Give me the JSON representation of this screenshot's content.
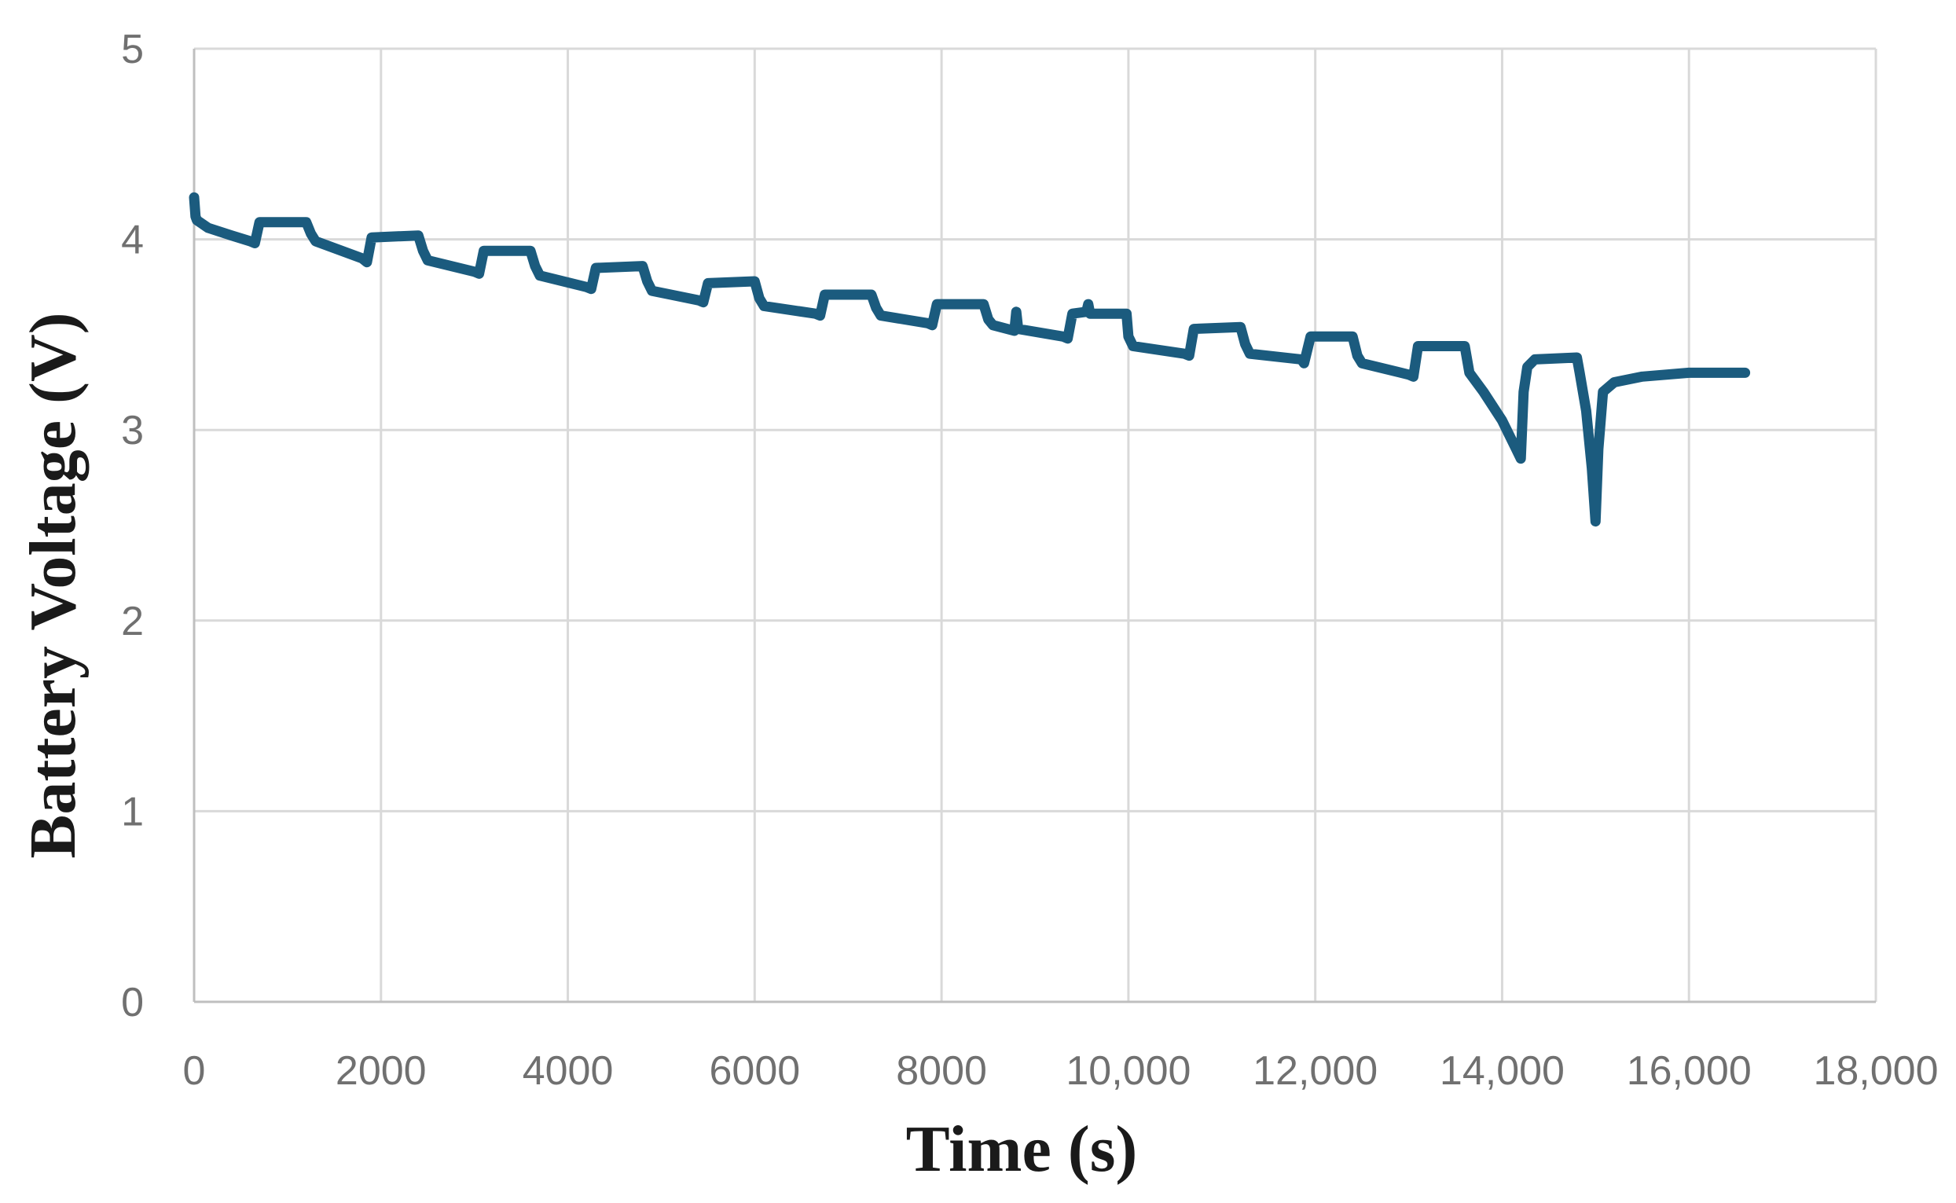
{
  "chart_data": {
    "type": "line",
    "xlabel": "Time (s)",
    "ylabel": "Battery Voltage (V)",
    "xlim": [
      0,
      18000
    ],
    "ylim": [
      0,
      5
    ],
    "x_ticks": [
      0,
      2000,
      4000,
      6000,
      8000,
      10000,
      12000,
      14000,
      16000,
      18000
    ],
    "x_tick_labels": [
      "0",
      "2000",
      "4000",
      "6000",
      "8000",
      "10,000",
      "12,000",
      "14,000",
      "16,000",
      "18,000"
    ],
    "y_ticks": [
      0,
      1,
      2,
      3,
      4,
      5
    ],
    "y_tick_labels": [
      "0",
      "1",
      "2",
      "3",
      "4",
      "5"
    ],
    "grid": true,
    "legend": "none",
    "series": [
      {
        "color": "#1b5b7e",
        "x": [
          0,
          15,
          30,
          150,
          400,
          600,
          650,
          700,
          1200,
          1250,
          1300,
          1800,
          1850,
          1900,
          2400,
          2450,
          2500,
          3000,
          3050,
          3100,
          3600,
          3650,
          3700,
          4200,
          4250,
          4300,
          4800,
          4850,
          4900,
          5400,
          5450,
          5500,
          6000,
          6050,
          6100,
          6650,
          6700,
          6750,
          7250,
          7300,
          7350,
          7850,
          7900,
          7950,
          8450,
          8500,
          8550,
          8780,
          8800,
          8820,
          9300,
          9350,
          9400,
          9550,
          9570,
          9590,
          9980,
          10000,
          10050,
          10600,
          10650,
          10700,
          11200,
          11250,
          11300,
          11850,
          11880,
          11950,
          12400,
          12450,
          12500,
          13000,
          13050,
          13100,
          13600,
          13650,
          13800,
          14000,
          14150,
          14200,
          14230,
          14270,
          14350,
          14800,
          14830,
          14900,
          14960,
          15000,
          15030,
          15080,
          15200,
          15500,
          16000,
          16600
        ],
        "y": [
          4.22,
          4.12,
          4.1,
          4.06,
          4.02,
          3.99,
          3.98,
          4.09,
          4.09,
          4.03,
          3.99,
          3.9,
          3.88,
          4.01,
          4.02,
          3.94,
          3.89,
          3.83,
          3.82,
          3.94,
          3.94,
          3.86,
          3.81,
          3.75,
          3.74,
          3.85,
          3.86,
          3.78,
          3.73,
          3.68,
          3.67,
          3.77,
          3.78,
          3.69,
          3.65,
          3.61,
          3.6,
          3.71,
          3.71,
          3.64,
          3.6,
          3.56,
          3.55,
          3.66,
          3.66,
          3.58,
          3.55,
          3.52,
          3.62,
          3.53,
          3.49,
          3.48,
          3.61,
          3.62,
          3.66,
          3.61,
          3.61,
          3.49,
          3.44,
          3.4,
          3.39,
          3.53,
          3.54,
          3.45,
          3.4,
          3.37,
          3.35,
          3.49,
          3.49,
          3.39,
          3.35,
          3.29,
          3.28,
          3.44,
          3.44,
          3.3,
          3.2,
          3.05,
          2.9,
          2.85,
          3.2,
          3.33,
          3.37,
          3.38,
          3.3,
          3.1,
          2.8,
          2.52,
          2.9,
          3.2,
          3.25,
          3.28,
          3.3,
          3.3
        ]
      }
    ]
  }
}
